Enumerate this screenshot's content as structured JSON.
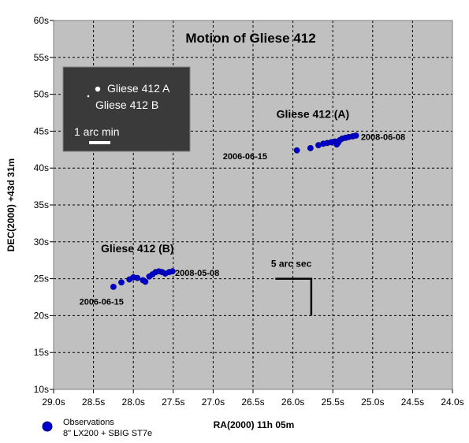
{
  "chart_data": {
    "type": "scatter",
    "title": "Motion of Gliese 412",
    "xlabel": "RA(2000) 11h 05m",
    "ylabel": "DEC(2000) +43d 31m",
    "xlim": [
      29.0,
      24.0
    ],
    "ylim": [
      10,
      60
    ],
    "x_reversed": true,
    "grid": true,
    "x_ticks": [
      {
        "v": 29.0,
        "label": "29.0s"
      },
      {
        "v": 28.5,
        "label": "28.5s"
      },
      {
        "v": 28.0,
        "label": "28.0s"
      },
      {
        "v": 27.5,
        "label": "27.5s"
      },
      {
        "v": 27.0,
        "label": "27.0s"
      },
      {
        "v": 26.5,
        "label": "26.5s"
      },
      {
        "v": 26.0,
        "label": "26.0s"
      },
      {
        "v": 25.5,
        "label": "25.5s"
      },
      {
        "v": 25.0,
        "label": "25.0s"
      },
      {
        "v": 24.5,
        "label": "24.5s"
      },
      {
        "v": 24.0,
        "label": "24.0s"
      }
    ],
    "y_ticks": [
      {
        "v": 10,
        "label": "10s"
      },
      {
        "v": 15,
        "label": "15s"
      },
      {
        "v": 20,
        "label": "20s"
      },
      {
        "v": 25,
        "label": "25s"
      },
      {
        "v": 30,
        "label": "30s"
      },
      {
        "v": 35,
        "label": "35s"
      },
      {
        "v": 40,
        "label": "40s"
      },
      {
        "v": 45,
        "label": "45s"
      },
      {
        "v": 50,
        "label": "50s"
      },
      {
        "v": 55,
        "label": "55s"
      },
      {
        "v": 60,
        "label": "60s"
      }
    ],
    "series": [
      {
        "name": "Observations",
        "color": "#0000cc",
        "points": [
          {
            "x": 25.95,
            "y": 42.4
          },
          {
            "x": 25.78,
            "y": 42.7
          },
          {
            "x": 25.68,
            "y": 43.1
          },
          {
            "x": 25.62,
            "y": 43.3
          },
          {
            "x": 25.57,
            "y": 43.4
          },
          {
            "x": 25.52,
            "y": 43.5
          },
          {
            "x": 25.47,
            "y": 43.6
          },
          {
            "x": 25.43,
            "y": 43.5
          },
          {
            "x": 25.41,
            "y": 43.8
          },
          {
            "x": 25.38,
            "y": 44.0
          },
          {
            "x": 25.34,
            "y": 44.1
          },
          {
            "x": 25.3,
            "y": 44.2
          },
          {
            "x": 25.25,
            "y": 44.3
          },
          {
            "x": 25.21,
            "y": 44.4
          },
          {
            "x": 25.45,
            "y": 43.2
          },
          {
            "x": 28.25,
            "y": 23.9
          },
          {
            "x": 28.15,
            "y": 24.5
          },
          {
            "x": 28.05,
            "y": 24.9
          },
          {
            "x": 28.0,
            "y": 25.2
          },
          {
            "x": 27.95,
            "y": 25.1
          },
          {
            "x": 27.88,
            "y": 24.8
          },
          {
            "x": 27.85,
            "y": 24.6
          },
          {
            "x": 27.8,
            "y": 25.3
          },
          {
            "x": 27.76,
            "y": 25.6
          },
          {
            "x": 27.72,
            "y": 25.9
          },
          {
            "x": 27.68,
            "y": 26.0
          },
          {
            "x": 27.64,
            "y": 25.9
          },
          {
            "x": 27.6,
            "y": 25.7
          },
          {
            "x": 27.55,
            "y": 25.9
          },
          {
            "x": 27.51,
            "y": 26.0
          }
        ]
      }
    ],
    "annotations": [
      {
        "id": "label-a",
        "text": "Gliese 412 (A)",
        "x": 25.75,
        "y": 46.8
      },
      {
        "id": "label-b",
        "text": "Gliese 412 (B)",
        "x": 27.95,
        "y": 28.6
      },
      {
        "id": "date-a-start",
        "text": "2006-06-15",
        "x": 26.6,
        "y": 41.2
      },
      {
        "id": "date-a-end",
        "text": "2008-06-08",
        "x": 24.87,
        "y": 43.8
      },
      {
        "id": "date-b-start",
        "text": "2006-06-15",
        "x": 28.4,
        "y": 21.5
      },
      {
        "id": "date-b-end",
        "text": "2008-05-08",
        "x": 27.2,
        "y": 25.4
      },
      {
        "id": "scale-label",
        "text": "5 arc sec",
        "x": 26.02,
        "y": 26.6
      }
    ],
    "scale_bar": {
      "label": "5 arc sec",
      "corner_x": 25.77,
      "corner_y": 25,
      "x_start": 26.22,
      "y_end": 20
    },
    "inset": {
      "star_a": "Gliese 412 A",
      "star_b": "Gliese 412 B",
      "scale": "1 arc min"
    },
    "legend": {
      "position": "bottom-left",
      "entries": [
        "Observations",
        "8\" LX200 + SBIG ST7e"
      ]
    }
  }
}
